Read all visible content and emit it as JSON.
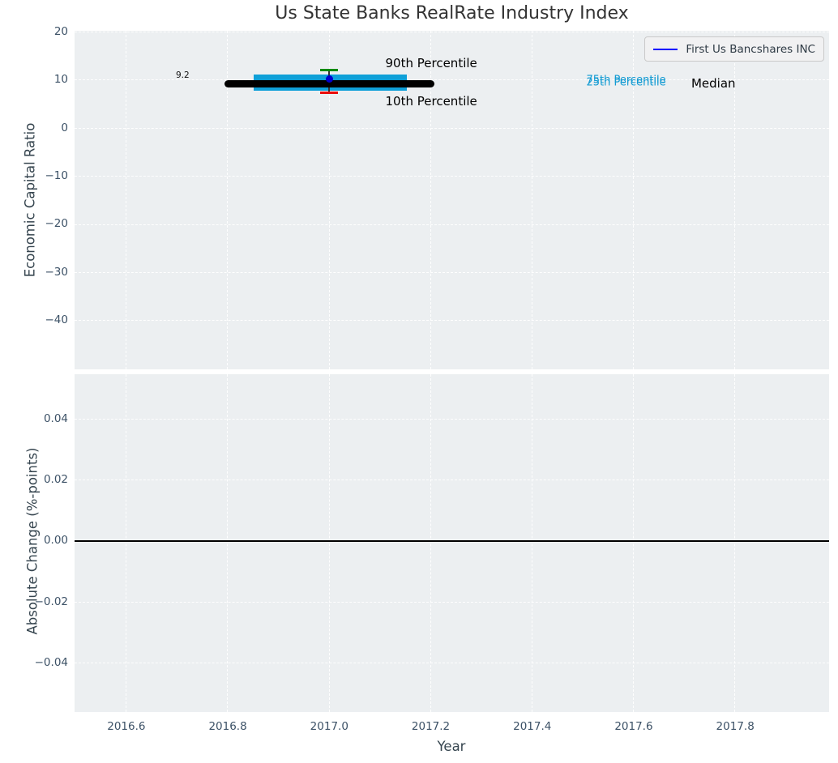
{
  "colors": {
    "axes_background": "#ECEFF1",
    "grid": "#FFFFFF",
    "tick_text": "#3C5166",
    "iqr_box_cyan": "#0FA0D8",
    "percentile_text_cyan": "#129BD3",
    "p90_cap_green": "#008A00",
    "p10_cap_red": "#EA0B0B",
    "median_black": "#000000",
    "company_dot_blue": "#0000CD",
    "legend_line_blue": "#0000FF"
  },
  "legend": {
    "label": "First Us Bancshares INC"
  },
  "chart_data": [
    {
      "type": "box",
      "title": "Us State Banks RealRate Industry Index",
      "ylabel": "Economic Capital Ratio",
      "xlabel": "Year",
      "grid": true,
      "legend_position": "upper right",
      "xlim": [
        2016.498,
        2017.985
      ],
      "ylim": [
        -50.1,
        20.3
      ],
      "xticks": [
        2016.6,
        2016.8,
        2017.0,
        2017.2,
        2017.4,
        2017.6,
        2017.8
      ],
      "show_xtick_labels": false,
      "yticks": [
        {
          "v": 20,
          "label": "20"
        },
        {
          "v": 10,
          "label": "10"
        },
        {
          "v": 0,
          "label": "0"
        },
        {
          "v": -10,
          "label": "−10"
        },
        {
          "v": -20,
          "label": "−20"
        },
        {
          "v": -30,
          "label": "−30"
        },
        {
          "v": -40,
          "label": "−40"
        }
      ],
      "box_stats": {
        "x_center": 2017.0,
        "box_x": [
          2016.851,
          2017.153
        ],
        "median_x": [
          2016.8,
          2017.2
        ],
        "p10": 7.4,
        "q1": 7.8,
        "median": 9.2,
        "q3": 11.2,
        "p90": 12.1
      },
      "company_point": {
        "name": "First Us Bancshares INC",
        "x": 2017.0,
        "y": 10.3
      },
      "annotations": [
        {
          "text": "9.2",
          "x": 2016.711,
          "y": 11.0,
          "style": "small"
        },
        {
          "text": "90th Percentile",
          "x": 2017.201,
          "y": 13.6,
          "style": "label"
        },
        {
          "text": "10th Percentile",
          "x": 2017.201,
          "y": 5.6,
          "style": "label"
        },
        {
          "text": "75th Percentile",
          "x": 2017.585,
          "y": 10.0,
          "style": "cyan"
        },
        {
          "text": "25th Percentile",
          "x": 2017.585,
          "y": 9.58,
          "style": "cyan"
        },
        {
          "text": "Median",
          "x": 2017.757,
          "y": 9.27,
          "style": "label"
        }
      ]
    },
    {
      "type": "line",
      "ylabel": "Absolute Change (%-points)",
      "xlabel": "Year",
      "grid": true,
      "xlim": [
        2016.498,
        2017.985
      ],
      "ylim": [
        -0.056,
        0.0548
      ],
      "xticks": [
        2016.6,
        2016.8,
        2017.0,
        2017.2,
        2017.4,
        2017.6,
        2017.8
      ],
      "show_xtick_labels": true,
      "xtick_labels": [
        "2016.6",
        "2016.8",
        "2017.0",
        "2017.2",
        "2017.4",
        "2017.6",
        "2017.8"
      ],
      "yticks": [
        {
          "v": 0.04,
          "label": "0.04"
        },
        {
          "v": 0.02,
          "label": "0.02"
        },
        {
          "v": 0.0,
          "label": "0.00"
        },
        {
          "v": -0.02,
          "label": "−0.02"
        },
        {
          "v": -0.04,
          "label": "−0.04"
        }
      ],
      "zero_line": 0.0
    }
  ]
}
